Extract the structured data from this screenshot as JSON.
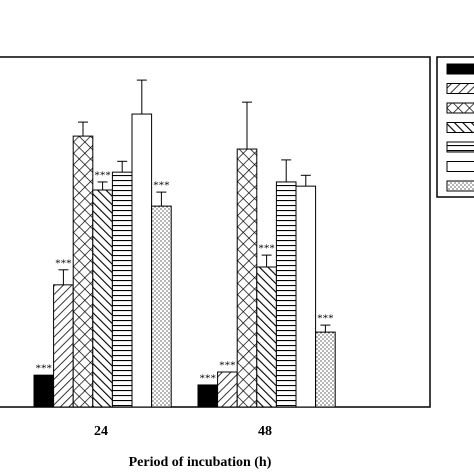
{
  "chart_data": {
    "type": "bar",
    "x_label": "Period of incubation (h)",
    "categories": [
      "24",
      "48"
    ],
    "ylim": [
      0,
      100
    ],
    "series": [
      {
        "color": "#000000",
        "pattern": "solid",
        "values": [
          9.1,
          6.3
        ],
        "errors": [
          0,
          0
        ],
        "significance": [
          "***",
          "***"
        ]
      },
      {
        "color": "#000000",
        "pattern": "diagonal",
        "values": [
          34.9,
          10
        ],
        "errors": [
          4.3,
          0
        ],
        "significance": [
          "***",
          "***"
        ]
      },
      {
        "color": "#000000",
        "pattern": "crosshatch",
        "values": [
          77.4,
          73.7
        ],
        "errors": [
          4,
          13.4
        ]
      },
      {
        "color": "#000000",
        "pattern": "backdiagonal",
        "values": [
          62,
          40
        ],
        "errors": [
          2.3,
          3.4
        ],
        "significance": [
          "***",
          "***"
        ]
      },
      {
        "color": "#000000",
        "pattern": "horizontal",
        "values": [
          67.1,
          64.3
        ],
        "errors": [
          3.1,
          6.3
        ]
      },
      {
        "color": "#000000",
        "pattern": "none",
        "values": [
          83.7,
          63.1
        ],
        "errors": [
          9.7,
          3.1
        ]
      },
      {
        "color": "#000000",
        "pattern": "dots",
        "values": [
          57.4,
          21.4
        ],
        "errors": [
          4,
          2
        ],
        "significance": [
          "***",
          "***"
        ]
      }
    ]
  }
}
